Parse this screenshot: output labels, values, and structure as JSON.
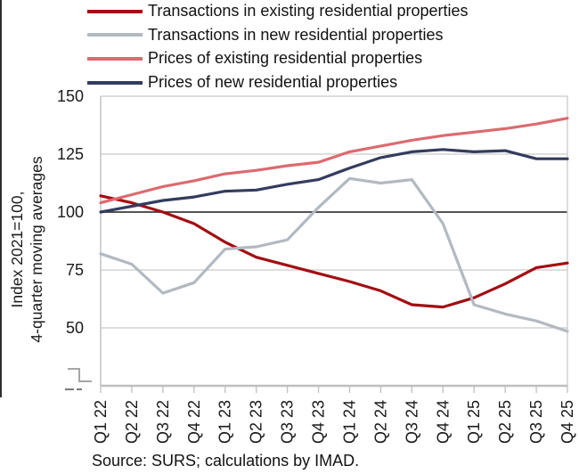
{
  "source": "Source: SURS; calculations by IMAD.",
  "colors": {
    "grid": "#c9c9c9",
    "axis": "#bfbfbf",
    "baseline": "#3d3d3d",
    "text": "#1a1a1a",
    "figure_border": "#2e2e2e"
  },
  "chart_data": {
    "type": "line",
    "title": "",
    "xlabel": "",
    "ylabel_lines": [
      "Index 2021=100,",
      "4-quarter moving averages"
    ],
    "legend_position": "top",
    "grid": true,
    "axis_break": true,
    "baseline": 100,
    "ylim": [
      25,
      150
    ],
    "yticks": [
      50,
      75,
      100,
      125,
      150
    ],
    "categories": [
      "Q1 22",
      "Q2 22",
      "Q3 22",
      "Q4 22",
      "Q1 23",
      "Q2 23",
      "Q3 23",
      "Q4 23",
      "Q1 24",
      "Q2 24",
      "Q3 24",
      "Q4 24",
      "Q1 25",
      "Q2 25",
      "Q3 25",
      "Q4 25"
    ],
    "series": [
      {
        "name": "Transactions in existing residential properties",
        "color": "#A30D12",
        "values": [
          107,
          104,
          100,
          95,
          87,
          80.5,
          77,
          73.5,
          70,
          66,
          60,
          59,
          63,
          69,
          76,
          78
        ]
      },
      {
        "name": "Transactions in new residential properties",
        "color": "#B2B9C1",
        "values": [
          82,
          77.5,
          65,
          69.5,
          84,
          85,
          88,
          102,
          114.5,
          112.5,
          114,
          95,
          60,
          56,
          53,
          48.5
        ]
      },
      {
        "name": "Prices of existing residential properties",
        "color": "#DB6B6F",
        "values": [
          104,
          107.5,
          111,
          113.5,
          116.5,
          118,
          120,
          121.5,
          126,
          128.5,
          131,
          133,
          134.5,
          136,
          138,
          140.5
        ]
      },
      {
        "name": "Prices of new residential properties",
        "color": "#333C5E",
        "values": [
          100,
          102.5,
          105,
          106.5,
          109,
          109.5,
          112,
          114,
          119,
          123.5,
          126,
          127,
          126,
          126.5,
          123,
          123
        ]
      }
    ]
  }
}
